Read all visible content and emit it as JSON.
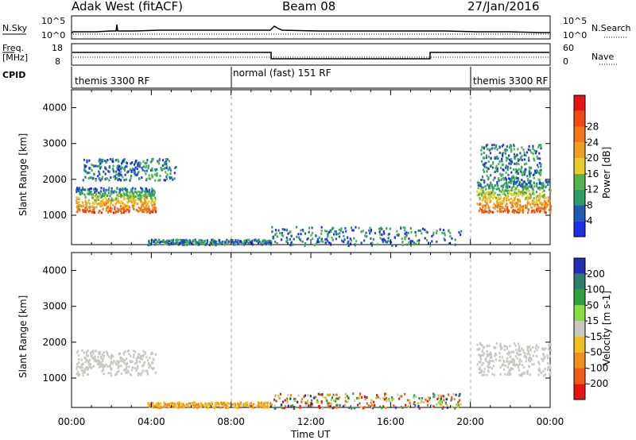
{
  "header": {
    "station": "Adak West (fitACF)",
    "beam": "Beam 08",
    "date": "27/Jan/2016"
  },
  "strips": {
    "nsky_label": "N.Sky",
    "nsky_ticks": [
      "10^5",
      "10^0"
    ],
    "nsearch_label": "N.Search",
    "nsearch_ticks": [
      "10^5",
      "10^0"
    ],
    "freq_label_1": "Freq.",
    "freq_label_2": "[MHz]",
    "freq_ticks": [
      "18",
      "8"
    ],
    "nave_label": "Nave",
    "nave_ticks": [
      "60",
      "0"
    ],
    "cpid_label": "CPID",
    "cpid_segments": [
      "themis 3300 RF",
      "normal (fast) 151 RF",
      "themis 3300 RF"
    ]
  },
  "x_axis": {
    "ticks": [
      "00:00",
      "04:00",
      "08:00",
      "12:00",
      "16:00",
      "20:00",
      "00:00"
    ],
    "label": "Time UT"
  },
  "chart_data": [
    {
      "type": "heatmap",
      "name": "power",
      "xlabel": "Time UT",
      "ylabel": "Slant Range [km]",
      "yticks": [
        "1000",
        "2000",
        "3000",
        "4000"
      ],
      "xlim_hours": [
        0,
        24
      ],
      "ylim_km": [
        180,
        4500
      ],
      "colorbar": {
        "label": "Power [dB]",
        "ticks": [
          "4",
          "8",
          "12",
          "16",
          "20",
          "24",
          "28"
        ],
        "colors": [
          "#1e2ee6",
          "#1f5ab4",
          "#2f9c6a",
          "#52b44c",
          "#e6cc2a",
          "#f0a020",
          "#f07818",
          "#f04a14",
          "#e81414"
        ]
      },
      "regions": [
        {
          "t": [
            0.2,
            4.2
          ],
          "range_km": [
            1100,
            1800
          ],
          "level": "high"
        },
        {
          "t": [
            20.3,
            24.0
          ],
          "range_km": [
            1100,
            2000
          ],
          "level": "high"
        },
        {
          "t": [
            0.5,
            5.2
          ],
          "range_km": [
            2000,
            2600
          ],
          "level": "low"
        },
        {
          "t": [
            20.5,
            23.5
          ],
          "range_km": [
            2000,
            3000
          ],
          "level": "low"
        },
        {
          "t": [
            3.8,
            10.0
          ],
          "range_km": [
            200,
            350
          ],
          "level": "low"
        },
        {
          "t": [
            10.0,
            19.5
          ],
          "range_km": [
            180,
            700
          ],
          "level": "low"
        }
      ]
    },
    {
      "type": "heatmap",
      "name": "velocity",
      "xlabel": "Time UT",
      "ylabel": "Slant Range [km]",
      "yticks": [
        "1000",
        "2000",
        "3000",
        "4000"
      ],
      "xlim_hours": [
        0,
        24
      ],
      "ylim_km": [
        180,
        4500
      ],
      "colorbar": {
        "label": "Velocity [m s-1]",
        "ticks": [
          "200",
          "100",
          "50",
          "15",
          "-15",
          "-50",
          "-100",
          "-200"
        ],
        "colors": [
          "#2030b0",
          "#2f7c6a",
          "#30a040",
          "#8adc40",
          "#c8c8c0",
          "#f0c020",
          "#f09018",
          "#f05a14",
          "#e81414"
        ]
      },
      "regions": [
        {
          "t": [
            0.2,
            4.2
          ],
          "range_km": [
            1100,
            1800
          ],
          "level": "ground"
        },
        {
          "t": [
            20.3,
            24.0
          ],
          "range_km": [
            1100,
            2000
          ],
          "level": "ground"
        },
        {
          "t": [
            3.8,
            10.0
          ],
          "range_km": [
            200,
            350
          ],
          "level": "negative"
        },
        {
          "t": [
            10.0,
            19.5
          ],
          "range_km": [
            180,
            600
          ],
          "level": "mixed"
        }
      ]
    }
  ]
}
